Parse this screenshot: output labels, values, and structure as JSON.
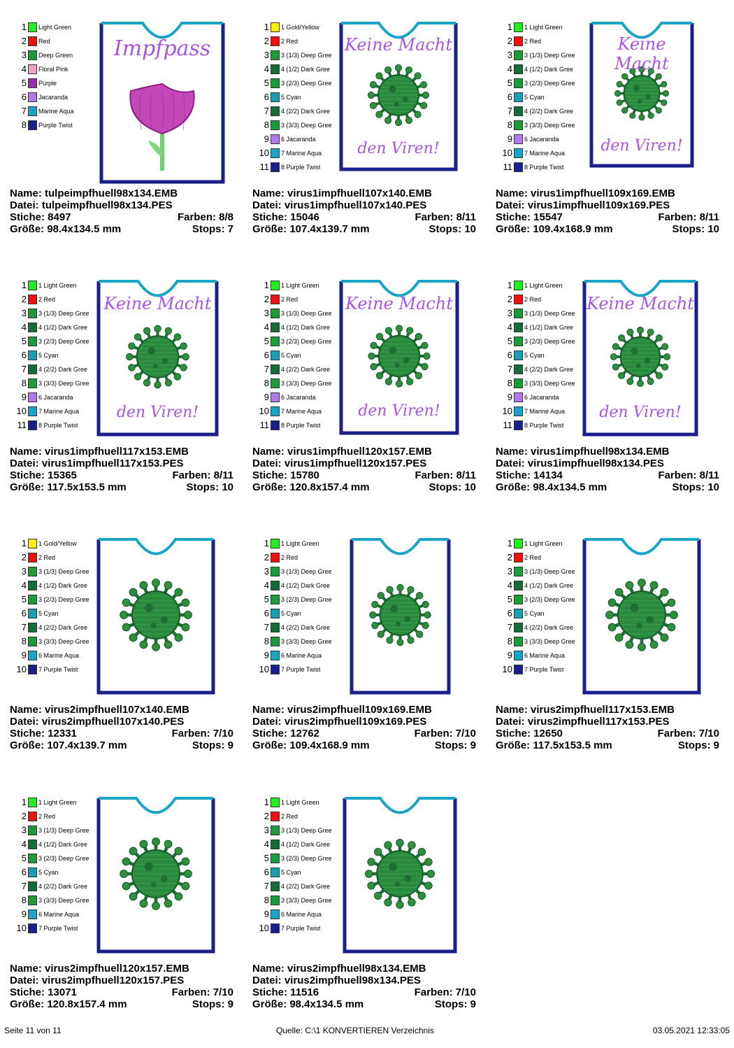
{
  "colors": {
    "light_green": "#22ee22",
    "red": "#ee1111",
    "deep_green": "#1e9a3a",
    "dark_green": "#176a3a",
    "floral_pink": "#f7a1c4",
    "purple": "#9b2aa6",
    "jacaranda": "#b27ae6",
    "marine_aqua": "#1aa5c8",
    "purple_twist": "#1a1f8a",
    "gold_yellow": "#ffee00",
    "cyan": "#1a9eb0",
    "text_purple": "#a855e0"
  },
  "cards": [
    {
      "design": "tulip",
      "palette": [
        {
          "num": "1",
          "label": "Light Green",
          "color": "#22ee22"
        },
        {
          "num": "2",
          "label": "Red",
          "color": "#ee1111"
        },
        {
          "num": "3",
          "label": "Deep Green",
          "color": "#1e9a3a"
        },
        {
          "num": "4",
          "label": "Floral Pink",
          "color": "#f7a1c4"
        },
        {
          "num": "5",
          "label": "Purple",
          "color": "#9b2aa6"
        },
        {
          "num": "6",
          "label": "Jacaranda",
          "color": "#b27ae6"
        },
        {
          "num": "7",
          "label": "Marine Aqua",
          "color": "#1aa5c8"
        },
        {
          "num": "8",
          "label": "Purple Twist",
          "color": "#1a1f8a"
        }
      ],
      "top_text": "Impfpass",
      "bottom_text": "",
      "name": "Name: tulpeimpfhuell98x134.EMB",
      "datei": "Datei: tulpeimpfhuell98x134.PES",
      "stiche": "Stiche: 8497",
      "farben": "Farben: 8/8",
      "groesse": "Größe: 98.4x134.5 mm",
      "stops": "Stops: 7"
    },
    {
      "design": "virus1",
      "palette": [
        {
          "num": "1",
          "label": "1 Gold/Yellow",
          "color": "#ffee00"
        },
        {
          "num": "2",
          "label": "2 Red",
          "color": "#ee1111"
        },
        {
          "num": "3",
          "label": "3 (1/3) Deep Gree",
          "color": "#1e9a3a"
        },
        {
          "num": "4",
          "label": "4 (1/2) Dark Gree",
          "color": "#176a3a"
        },
        {
          "num": "5",
          "label": "3 (2/3) Deep Gree",
          "color": "#1e9a3a"
        },
        {
          "num": "6",
          "label": "5 Cyan",
          "color": "#1a9eb0"
        },
        {
          "num": "7",
          "label": "4 (2/2) Dark Gree",
          "color": "#176a3a"
        },
        {
          "num": "8",
          "label": "3 (3/3) Deep Gree",
          "color": "#1e9a3a"
        },
        {
          "num": "9",
          "label": "6 Jacaranda",
          "color": "#b27ae6"
        },
        {
          "num": "10",
          "label": "7 Marine Aqua",
          "color": "#1aa5c8"
        },
        {
          "num": "11",
          "label": "8 Purple Twist",
          "color": "#1a1f8a"
        }
      ],
      "top_text": "Keine Macht",
      "bottom_text": "den Viren!",
      "name": "Name: virus1impfhuell107x140.EMB",
      "datei": "Datei: virus1impfhuell107x140.PES",
      "stiche": "Stiche: 15046",
      "farben": "Farben: 8/11",
      "groesse": "Größe: 107.4x139.7 mm",
      "stops": "Stops: 10"
    },
    {
      "design": "virus1",
      "palette": [
        {
          "num": "1",
          "label": "1 Light Green",
          "color": "#22ee22"
        },
        {
          "num": "2",
          "label": "2 Red",
          "color": "#ee1111"
        },
        {
          "num": "3",
          "label": "3 (1/3) Deep Gree",
          "color": "#1e9a3a"
        },
        {
          "num": "4",
          "label": "4 (1/2) Dark Gree",
          "color": "#176a3a"
        },
        {
          "num": "5",
          "label": "3 (2/3) Deep Gree",
          "color": "#1e9a3a"
        },
        {
          "num": "6",
          "label": "5 Cyan",
          "color": "#1a9eb0"
        },
        {
          "num": "7",
          "label": "4 (2/2) Dark Gree",
          "color": "#176a3a"
        },
        {
          "num": "8",
          "label": "3 (3/3) Deep Gree",
          "color": "#1e9a3a"
        },
        {
          "num": "9",
          "label": "6 Jacaranda",
          "color": "#b27ae6"
        },
        {
          "num": "10",
          "label": "7 Marine Aqua",
          "color": "#1aa5c8"
        },
        {
          "num": "11",
          "label": "8 Purple Twist",
          "color": "#1a1f8a"
        }
      ],
      "top_text": "Keine Macht",
      "bottom_text": "den Viren!",
      "name": "Name: virus1impfhuell109x169.EMB",
      "datei": "Datei: virus1impfhuell109x169.PES",
      "stiche": "Stiche: 15547",
      "farben": "Farben: 8/11",
      "groesse": "Größe: 109.4x168.9 mm",
      "stops": "Stops: 10"
    },
    {
      "design": "virus1",
      "palette": [
        {
          "num": "1",
          "label": "1 Light Green",
          "color": "#22ee22"
        },
        {
          "num": "2",
          "label": "2 Red",
          "color": "#ee1111"
        },
        {
          "num": "3",
          "label": "3 (1/3) Deep Gree",
          "color": "#1e9a3a"
        },
        {
          "num": "4",
          "label": "4 (1/2) Dark Gree",
          "color": "#176a3a"
        },
        {
          "num": "5",
          "label": "3 (2/3) Deep Gree",
          "color": "#1e9a3a"
        },
        {
          "num": "6",
          "label": "5 Cyan",
          "color": "#1a9eb0"
        },
        {
          "num": "7",
          "label": "4 (2/2) Dark Gree",
          "color": "#176a3a"
        },
        {
          "num": "8",
          "label": "3 (3/3) Deep Gree",
          "color": "#1e9a3a"
        },
        {
          "num": "9",
          "label": "6 Jacaranda",
          "color": "#b27ae6"
        },
        {
          "num": "10",
          "label": "7 Marine Aqua",
          "color": "#1aa5c8"
        },
        {
          "num": "11",
          "label": "8 Purple Twist",
          "color": "#1a1f8a"
        }
      ],
      "top_text": "Keine Macht",
      "bottom_text": "den Viren!",
      "name": "Name: virus1impfhuell117x153.EMB",
      "datei": "Datei: virus1impfhuell117x153.PES",
      "stiche": "Stiche: 15365",
      "farben": "Farben: 8/11",
      "groesse": "Größe: 117.5x153.5 mm",
      "stops": "Stops: 10"
    },
    {
      "design": "virus1",
      "palette": [
        {
          "num": "1",
          "label": "1 Light Green",
          "color": "#22ee22"
        },
        {
          "num": "2",
          "label": "2 Red",
          "color": "#ee1111"
        },
        {
          "num": "3",
          "label": "3 (1/3) Deep Gree",
          "color": "#1e9a3a"
        },
        {
          "num": "4",
          "label": "4 (1/2) Dark Gree",
          "color": "#176a3a"
        },
        {
          "num": "5",
          "label": "3 (2/3) Deep Gree",
          "color": "#1e9a3a"
        },
        {
          "num": "6",
          "label": "5 Cyan",
          "color": "#1a9eb0"
        },
        {
          "num": "7",
          "label": "4 (2/2) Dark Gree",
          "color": "#176a3a"
        },
        {
          "num": "8",
          "label": "3 (3/3) Deep Gree",
          "color": "#1e9a3a"
        },
        {
          "num": "9",
          "label": "6 Jacaranda",
          "color": "#b27ae6"
        },
        {
          "num": "10",
          "label": "7 Marine Aqua",
          "color": "#1aa5c8"
        },
        {
          "num": "11",
          "label": "8 Purple Twist",
          "color": "#1a1f8a"
        }
      ],
      "top_text": "Keine Macht",
      "bottom_text": "den Viren!",
      "name": "Name: virus1impfhuell120x157.EMB",
      "datei": "Datei: virus1impfhuell120x157.PES",
      "stiche": "Stiche: 15780",
      "farben": "Farben: 8/11",
      "groesse": "Größe: 120.8x157.4 mm",
      "stops": "Stops: 10"
    },
    {
      "design": "virus1",
      "palette": [
        {
          "num": "1",
          "label": "1 Light Green",
          "color": "#22ee22"
        },
        {
          "num": "2",
          "label": "2 Red",
          "color": "#ee1111"
        },
        {
          "num": "3",
          "label": "3 (1/3) Deep Gree",
          "color": "#1e9a3a"
        },
        {
          "num": "4",
          "label": "4 (1/2) Dark Gree",
          "color": "#176a3a"
        },
        {
          "num": "5",
          "label": "3 (2/3) Deep Gree",
          "color": "#1e9a3a"
        },
        {
          "num": "6",
          "label": "5 Cyan",
          "color": "#1a9eb0"
        },
        {
          "num": "7",
          "label": "4 (2/2) Dark Gree",
          "color": "#176a3a"
        },
        {
          "num": "8",
          "label": "3 (3/3) Deep Gree",
          "color": "#1e9a3a"
        },
        {
          "num": "9",
          "label": "6 Jacaranda",
          "color": "#b27ae6"
        },
        {
          "num": "10",
          "label": "7 Marine Aqua",
          "color": "#1aa5c8"
        },
        {
          "num": "11",
          "label": "8 Purple Twist",
          "color": "#1a1f8a"
        }
      ],
      "top_text": "Keine Macht",
      "bottom_text": "den Viren!",
      "name": "Name: virus1impfhuell98x134.EMB",
      "datei": "Datei: virus1impfhuell98x134.PES",
      "stiche": "Stiche: 14134",
      "farben": "Farben: 8/11",
      "groesse": "Größe: 98.4x134.5 mm",
      "stops": "Stops: 10"
    },
    {
      "design": "virus2",
      "palette": [
        {
          "num": "1",
          "label": "1 Gold/Yellow",
          "color": "#ffee00"
        },
        {
          "num": "2",
          "label": "2 Red",
          "color": "#ee1111"
        },
        {
          "num": "3",
          "label": "3 (1/3) Deep Gree",
          "color": "#1e9a3a"
        },
        {
          "num": "4",
          "label": "4 (1/2) Dark Gree",
          "color": "#176a3a"
        },
        {
          "num": "5",
          "label": "3 (2/3) Deep Gree",
          "color": "#1e9a3a"
        },
        {
          "num": "6",
          "label": "5 Cyan",
          "color": "#1a9eb0"
        },
        {
          "num": "7",
          "label": "4 (2/2) Dark Gree",
          "color": "#176a3a"
        },
        {
          "num": "8",
          "label": "3 (3/3) Deep Gree",
          "color": "#1e9a3a"
        },
        {
          "num": "9",
          "label": "6 Marine Aqua",
          "color": "#1aa5c8"
        },
        {
          "num": "10",
          "label": "7 Purple Twist",
          "color": "#1a1f8a"
        }
      ],
      "top_text": "",
      "bottom_text": "",
      "name": "Name: virus2impfhuell107x140.EMB",
      "datei": "Datei: virus2impfhuell107x140.PES",
      "stiche": "Stiche: 12331",
      "farben": "Farben: 7/10",
      "groesse": "Größe: 107.4x139.7 mm",
      "stops": "Stops: 9"
    },
    {
      "design": "virus2",
      "palette": [
        {
          "num": "1",
          "label": "1 Light Green",
          "color": "#22ee22"
        },
        {
          "num": "2",
          "label": "2 Red",
          "color": "#ee1111"
        },
        {
          "num": "3",
          "label": "3 (1/3) Deep Gree",
          "color": "#1e9a3a"
        },
        {
          "num": "4",
          "label": "4 (1/2) Dark Gree",
          "color": "#176a3a"
        },
        {
          "num": "5",
          "label": "3 (2/3) Deep Gree",
          "color": "#1e9a3a"
        },
        {
          "num": "6",
          "label": "5 Cyan",
          "color": "#1a9eb0"
        },
        {
          "num": "7",
          "label": "4 (2/2) Dark Gree",
          "color": "#176a3a"
        },
        {
          "num": "8",
          "label": "3 (3/3) Deep Gree",
          "color": "#1e9a3a"
        },
        {
          "num": "9",
          "label": "6 Marine Aqua",
          "color": "#1aa5c8"
        },
        {
          "num": "10",
          "label": "7 Purple Twist",
          "color": "#1a1f8a"
        }
      ],
      "top_text": "",
      "bottom_text": "",
      "name": "Name: virus2impfhuell109x169.EMB",
      "datei": "Datei: virus2impfhuell109x169.PES",
      "stiche": "Stiche: 12762",
      "farben": "Farben: 7/10",
      "groesse": "Größe: 109.4x168.9 mm",
      "stops": "Stops: 9"
    },
    {
      "design": "virus2",
      "palette": [
        {
          "num": "1",
          "label": "1 Light Green",
          "color": "#22ee22"
        },
        {
          "num": "2",
          "label": "2 Red",
          "color": "#ee1111"
        },
        {
          "num": "3",
          "label": "3 (1/3) Deep Gree",
          "color": "#1e9a3a"
        },
        {
          "num": "4",
          "label": "4 (1/2) Dark Gree",
          "color": "#176a3a"
        },
        {
          "num": "5",
          "label": "3 (2/3) Deep Gree",
          "color": "#1e9a3a"
        },
        {
          "num": "6",
          "label": "5 Cyan",
          "color": "#1a9eb0"
        },
        {
          "num": "7",
          "label": "4 (2/2) Dark Gree",
          "color": "#176a3a"
        },
        {
          "num": "8",
          "label": "3 (3/3) Deep Gree",
          "color": "#1e9a3a"
        },
        {
          "num": "9",
          "label": "6 Marine Aqua",
          "color": "#1aa5c8"
        },
        {
          "num": "10",
          "label": "7 Purple Twist",
          "color": "#1a1f8a"
        }
      ],
      "top_text": "",
      "bottom_text": "",
      "name": "Name: virus2impfhuell117x153.EMB",
      "datei": "Datei: virus2impfhuell117x153.PES",
      "stiche": "Stiche: 12650",
      "farben": "Farben: 7/10",
      "groesse": "Größe: 117.5x153.5 mm",
      "stops": "Stops: 9"
    },
    {
      "design": "virus2",
      "palette": [
        {
          "num": "1",
          "label": "1 Light Green",
          "color": "#22ee22"
        },
        {
          "num": "2",
          "label": "2 Red",
          "color": "#ee1111"
        },
        {
          "num": "3",
          "label": "3 (1/3) Deep Gree",
          "color": "#1e9a3a"
        },
        {
          "num": "4",
          "label": "4 (1/2) Dark Gree",
          "color": "#176a3a"
        },
        {
          "num": "5",
          "label": "3 (2/3) Deep Gree",
          "color": "#1e9a3a"
        },
        {
          "num": "6",
          "label": "5 Cyan",
          "color": "#1a9eb0"
        },
        {
          "num": "7",
          "label": "4 (2/2) Dark Gree",
          "color": "#176a3a"
        },
        {
          "num": "8",
          "label": "3 (3/3) Deep Gree",
          "color": "#1e9a3a"
        },
        {
          "num": "9",
          "label": "6 Marine Aqua",
          "color": "#1aa5c8"
        },
        {
          "num": "10",
          "label": "7 Purple Twist",
          "color": "#1a1f8a"
        }
      ],
      "top_text": "",
      "bottom_text": "",
      "name": "Name: virus2impfhuell120x157.EMB",
      "datei": "Datei: virus2impfhuell120x157.PES",
      "stiche": "Stiche: 13071",
      "farben": "Farben: 7/10",
      "groesse": "Größe: 120.8x157.4 mm",
      "stops": "Stops: 9"
    },
    {
      "design": "virus2",
      "palette": [
        {
          "num": "1",
          "label": "1 Light Green",
          "color": "#22ee22"
        },
        {
          "num": "2",
          "label": "2 Red",
          "color": "#ee1111"
        },
        {
          "num": "3",
          "label": "3 (1/3) Deep Gree",
          "color": "#1e9a3a"
        },
        {
          "num": "4",
          "label": "4 (1/2) Dark Gree",
          "color": "#176a3a"
        },
        {
          "num": "5",
          "label": "3 (2/3) Deep Gree",
          "color": "#1e9a3a"
        },
        {
          "num": "6",
          "label": "5 Cyan",
          "color": "#1a9eb0"
        },
        {
          "num": "7",
          "label": "4 (2/2) Dark Gree",
          "color": "#176a3a"
        },
        {
          "num": "8",
          "label": "3 (3/3) Deep Gree",
          "color": "#1e9a3a"
        },
        {
          "num": "9",
          "label": "6 Marine Aqua",
          "color": "#1aa5c8"
        },
        {
          "num": "10",
          "label": "7 Purple Twist",
          "color": "#1a1f8a"
        }
      ],
      "top_text": "",
      "bottom_text": "",
      "name": "Name: virus2impfhuell98x134.EMB",
      "datei": "Datei: virus2impfhuell98x134.PES",
      "stiche": "Stiche: 11516",
      "farben": "Farben: 7/10",
      "groesse": "Größe: 98.4x134.5 mm",
      "stops": "Stops: 9"
    }
  ],
  "footer": {
    "page": "Seite 11 von 11",
    "source": "Quelle: C:\\1 KONVERTIEREN Verzeichnis",
    "datetime": "03.05.2021 12:33:05"
  }
}
